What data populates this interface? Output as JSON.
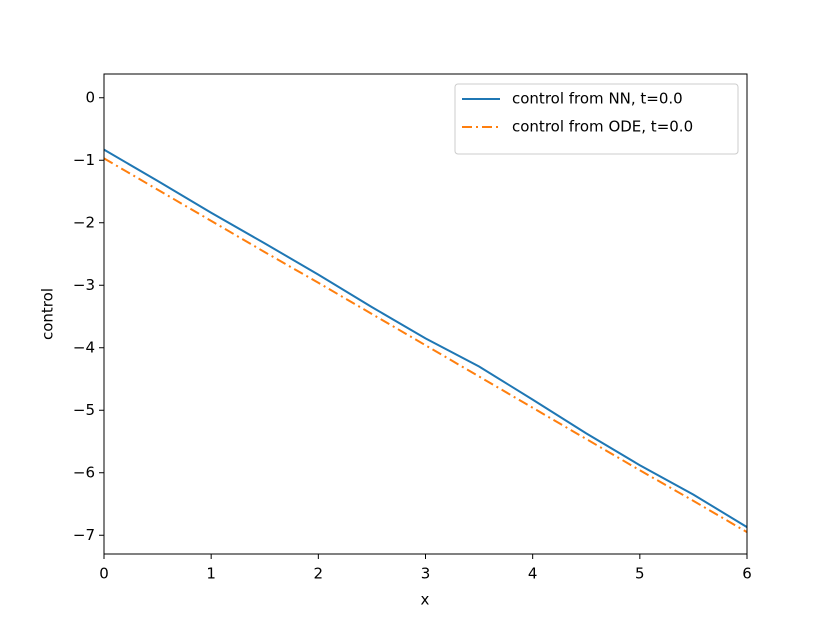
{
  "chart_data": {
    "type": "line",
    "x_label": "x",
    "y_label": "control",
    "x": [
      0,
      0.5,
      1,
      1.5,
      2,
      2.5,
      3,
      3.5,
      4,
      4.5,
      5,
      5.5,
      6
    ],
    "series": [
      {
        "name": "control from NN, t=0.0",
        "color": "#1f77b4",
        "linestyle": "solid",
        "values": [
          -0.83,
          -1.33,
          -1.84,
          -2.33,
          -2.83,
          -3.35,
          -3.85,
          -4.3,
          -4.83,
          -5.37,
          -5.88,
          -6.35,
          -6.87
        ]
      },
      {
        "name": "control from ODE, t=0.0",
        "color": "#ff7f0e",
        "linestyle": "dashdot",
        "values": [
          -0.97,
          -1.47,
          -1.97,
          -2.47,
          -2.96,
          -3.46,
          -3.96,
          -4.46,
          -4.96,
          -5.46,
          -5.96,
          -6.45,
          -6.95
        ]
      }
    ],
    "xlim": [
      0,
      6
    ],
    "ylim": [
      -7.3,
      0.38
    ],
    "xticks": [
      0,
      1,
      2,
      3,
      4,
      5,
      6
    ],
    "yticks": [
      0,
      {
        "value": -1,
        "label": "−1"
      },
      {
        "value": -2,
        "label": "−2"
      },
      {
        "value": -3,
        "label": "−3"
      },
      {
        "value": -4,
        "label": "−4"
      },
      {
        "value": -5,
        "label": "−5"
      },
      {
        "value": -6,
        "label": "−6"
      },
      {
        "value": -7,
        "label": "−7"
      }
    ],
    "grid": false,
    "legend": "upper right"
  }
}
